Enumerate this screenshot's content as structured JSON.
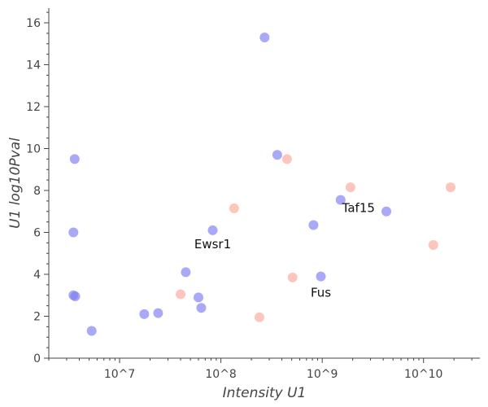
{
  "chart_data": {
    "type": "scatter",
    "xlabel": "Intensity U1",
    "ylabel": "U1 log10Pval",
    "x_scale": "log",
    "xlim": [
      2000000,
      36000000000
    ],
    "ylim": [
      0,
      16.7
    ],
    "x_ticks": [
      10000000,
      100000000,
      1000000000,
      10000000000
    ],
    "x_tick_labels": [
      "10^7",
      "10^8",
      "10^9",
      "10^10"
    ],
    "y_ticks": [
      0,
      2,
      4,
      6,
      8,
      10,
      12,
      14,
      16
    ],
    "grid": false,
    "legend": "none",
    "colors": {
      "blue": "#7b7bf2",
      "salmon": "#fca898",
      "axis": "#444444",
      "text": "#111111"
    },
    "series": [
      {
        "color": "#7b7bf2",
        "points": [
          {
            "x": 3600000,
            "y": 9.5
          },
          {
            "x": 3500000,
            "y": 6.0
          },
          {
            "x": 3500000,
            "y": 3.0
          },
          {
            "x": 3650000,
            "y": 2.95
          },
          {
            "x": 5300000,
            "y": 1.3
          },
          {
            "x": 17500000,
            "y": 2.1
          },
          {
            "x": 24000000,
            "y": 2.15
          },
          {
            "x": 45000000,
            "y": 4.1
          },
          {
            "x": 60000000,
            "y": 2.9
          },
          {
            "x": 64000000,
            "y": 2.4
          },
          {
            "x": 83000000,
            "y": 6.1
          },
          {
            "x": 270000000,
            "y": 15.3
          },
          {
            "x": 360000000,
            "y": 9.7
          },
          {
            "x": 820000000,
            "y": 6.35
          },
          {
            "x": 970000000,
            "y": 3.9
          },
          {
            "x": 1520000000,
            "y": 7.55
          },
          {
            "x": 4300000000,
            "y": 7.0
          }
        ]
      },
      {
        "color": "#fca898",
        "points": [
          {
            "x": 40000000,
            "y": 3.05
          },
          {
            "x": 135000000,
            "y": 7.15
          },
          {
            "x": 240000000,
            "y": 1.95
          },
          {
            "x": 450000000,
            "y": 9.5
          },
          {
            "x": 510000000,
            "y": 3.85
          },
          {
            "x": 1900000000,
            "y": 8.15
          },
          {
            "x": 12500000000,
            "y": 5.4
          },
          {
            "x": 18500000000,
            "y": 8.15
          }
        ]
      }
    ],
    "annotations": [
      {
        "text": "Ewsr1",
        "x": 83000000,
        "y": 6.1
      },
      {
        "text": "Taf15",
        "x": 1520000000,
        "y": 7.55
      },
      {
        "text": "Fus",
        "x": 970000000,
        "y": 3.9
      }
    ]
  }
}
